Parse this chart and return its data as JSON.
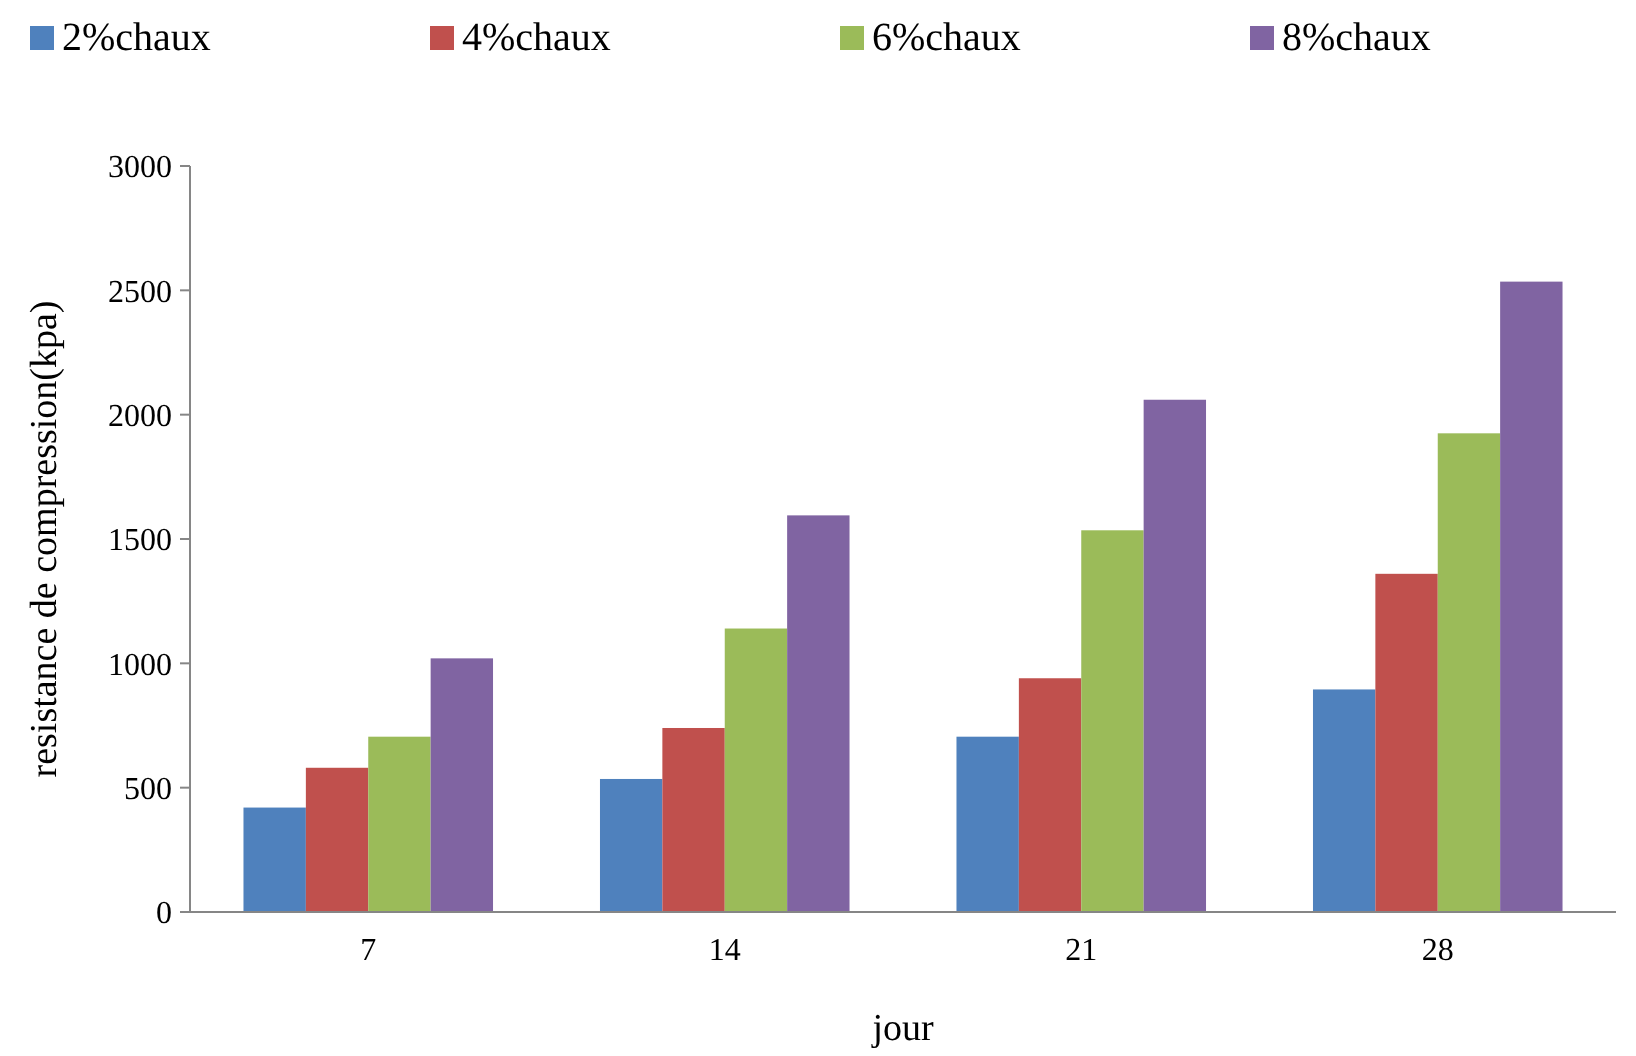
{
  "chart_data": {
    "type": "bar",
    "xlabel": "jour",
    "ylabel": "resistance de compression(kpa)",
    "categories": [
      "7",
      "14",
      "21",
      "28"
    ],
    "series": [
      {
        "name": "2%chaux",
        "color": "#4f81bd",
        "values": [
          420,
          535,
          705,
          895
        ]
      },
      {
        "name": "4%chaux",
        "color": "#c0504d",
        "values": [
          580,
          740,
          940,
          1360
        ]
      },
      {
        "name": "6%chaux",
        "color": "#9bbb59",
        "values": [
          705,
          1140,
          1535,
          1925
        ]
      },
      {
        "name": "8%chaux",
        "color": "#8064a2",
        "values": [
          1020,
          1595,
          2060,
          2535
        ]
      }
    ],
    "ylim": [
      0,
      3000
    ],
    "yticks": [
      0,
      500,
      1000,
      1500,
      2000,
      2500,
      3000
    ],
    "grid": false,
    "legend": "top"
  }
}
